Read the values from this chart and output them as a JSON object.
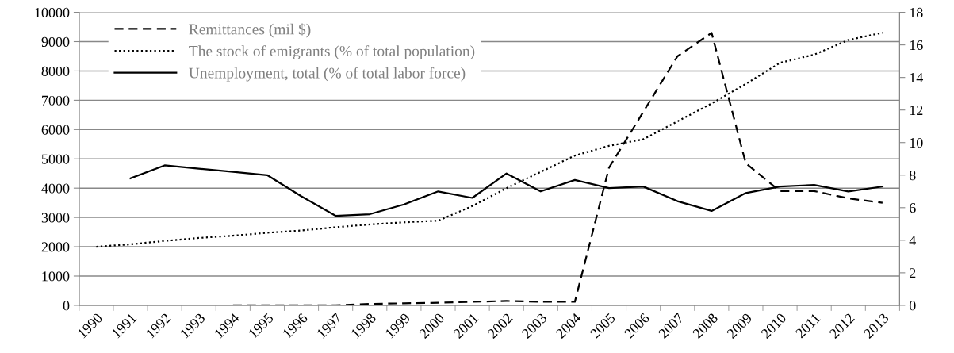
{
  "chart_data": {
    "type": "line",
    "categories": [
      "1990",
      "1991",
      "1992",
      "1993",
      "1994",
      "1995",
      "1996",
      "1997",
      "1998",
      "1999",
      "2000",
      "2001",
      "2002",
      "2003",
      "2004",
      "2005",
      "2006",
      "2007",
      "2008",
      "2009",
      "2010",
      "2011",
      "2012",
      "2013"
    ],
    "series": [
      {
        "name": "Remittances (mil $)",
        "color": "#000000",
        "line_style": "dashed",
        "values": [
          null,
          null,
          null,
          null,
          0,
          0,
          0,
          0,
          50,
          70,
          90,
          120,
          150,
          120,
          120,
          4700,
          6600,
          8500,
          9300,
          4850,
          3900,
          3900,
          3650,
          3500
        ]
      },
      {
        "name": "The stock of emigrants (% of total population)",
        "color": "#000000",
        "line_style": "dotted",
        "axis": "y2",
        "values": [
          3.6,
          3.75,
          3.96,
          4.14,
          4.28,
          4.46,
          4.6,
          4.8,
          4.97,
          5.1,
          5.2,
          6.1,
          7.2,
          8.2,
          9.2,
          9.8,
          10.2,
          11.3,
          12.4,
          13.6,
          14.9,
          15.4,
          16.3,
          16.75
        ]
      },
      {
        "name": "Unemployment, total (% of total labor force)",
        "color": "#000000",
        "line_style": "solid",
        "axis": "y2",
        "values": [
          null,
          7.8,
          8.6,
          8.4,
          8.2,
          8.0,
          6.7,
          5.5,
          5.6,
          6.2,
          7.0,
          6.6,
          8.1,
          7.0,
          7.7,
          7.2,
          7.3,
          6.4,
          5.8,
          6.9,
          7.3,
          7.4,
          7.0,
          7.3
        ]
      }
    ],
    "ylim": [
      0,
      10000
    ],
    "yticks": [
      0,
      1000,
      2000,
      3000,
      4000,
      5000,
      6000,
      7000,
      8000,
      9000,
      10000
    ],
    "y2lim": [
      0,
      18
    ],
    "y2ticks": [
      0,
      2,
      4,
      6,
      8,
      10,
      12,
      14,
      16,
      18
    ],
    "grid": "y",
    "legend": "top left",
    "marker": "none"
  }
}
